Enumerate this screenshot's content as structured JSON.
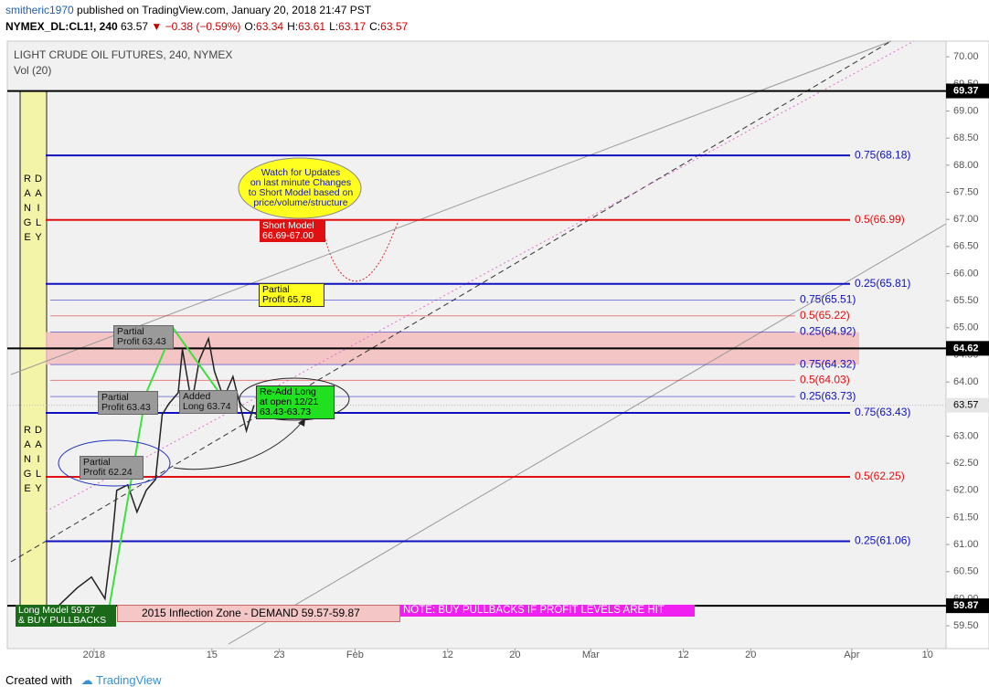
{
  "header": {
    "author": "smitheric1970",
    "published": "published on TradingView.com, January 20, 2018 21:47 PST",
    "symbol": "NYMEX_DL:CL1!, 240",
    "last": "63.57",
    "change": "▼ −0.38 (−0.59%)",
    "ohlc": [
      {
        "key": "O:",
        "value": "63.34"
      },
      {
        "key": "H:",
        "value": "63.61"
      },
      {
        "key": "L:",
        "value": "63.17"
      },
      {
        "key": "C:",
        "value": "63.57"
      }
    ]
  },
  "footer": {
    "created": "Created with",
    "brand": "TradingView"
  },
  "annotations": [
    "Watch for Updates\non last minute Changes\nto Short Model based on\nprice/volume/structure",
    "Short Model\n66.69-67.00",
    "Partial\nProfit 65.78",
    "Partial\nProfit 63.43",
    "Partial\nProfit 63.43",
    "Added\nLong 63.74",
    "Re-Add Long\nat open 12/21\n63.43-63.73",
    "Partial\nProfit 62.24",
    "Long Model 59.87\n& BUY PULLBACKS",
    "2015 Inflection Zone - DEMAND 59.57-59.87",
    "NOTE: BUY PULLBACKS IF PROFIT LEVELS ARE HIT",
    "DAILY RANGE",
    "DAILY RANGE"
  ],
  "chart_data": {
    "type": "line",
    "title": "LIGHT CRUDE OIL FUTURES, 240, NYMEX",
    "subtitle": "Vol (20)",
    "x": [
      -4.7,
      -2,
      -0.3,
      1.3,
      2.1,
      2.7,
      4,
      5.1,
      6.2,
      7.3,
      8.1,
      8.9,
      10,
      10.5,
      11.6,
      12.5,
      13.6,
      14.3,
      15.4,
      16.5,
      17.3,
      18.1,
      19
    ],
    "values": [
      59.8,
      60.2,
      60.4,
      60.0,
      61.0,
      62.0,
      62.1,
      61.6,
      62.0,
      62.2,
      63.4,
      63.6,
      63.8,
      64.6,
      63.6,
      64.4,
      64.8,
      64.2,
      63.7,
      64.1,
      63.6,
      63.1,
      63.57
    ],
    "color": "#222222",
    "xlim": [
      -10.3,
      101.2
    ],
    "xticks": [
      {
        "value": 0,
        "label": "2018"
      },
      {
        "value": 14,
        "label": "15"
      },
      {
        "value": 22,
        "label": "23"
      },
      {
        "value": 31,
        "label": "Feb"
      },
      {
        "value": 42,
        "label": "12"
      },
      {
        "value": 50,
        "label": "20"
      },
      {
        "value": 59,
        "label": "Mar"
      },
      {
        "value": 70,
        "label": "12"
      },
      {
        "value": 78,
        "label": "20"
      },
      {
        "value": 90,
        "label": "Apr"
      },
      {
        "value": 99,
        "label": "10"
      }
    ],
    "ylim": [
      59.08,
      70.29
    ],
    "yticks": [
      {
        "value": 59.5,
        "label": "59.50"
      },
      {
        "value": 60,
        "label": "60.00"
      },
      {
        "value": 60.5,
        "label": "60.50"
      },
      {
        "value": 61,
        "label": "61.00"
      },
      {
        "value": 61.5,
        "label": "61.50"
      },
      {
        "value": 62,
        "label": "62.00"
      },
      {
        "value": 62.5,
        "label": "62.50"
      },
      {
        "value": 63,
        "label": "63.00"
      },
      {
        "value": 63.5,
        "label": "63.50"
      },
      {
        "value": 64,
        "label": "64.00"
      },
      {
        "value": 64.5,
        "label": "64.50"
      },
      {
        "value": 65,
        "label": "65.00"
      },
      {
        "value": 65.5,
        "label": "65.50"
      },
      {
        "value": 66,
        "label": "66.00"
      },
      {
        "value": 66.5,
        "label": "66.50"
      },
      {
        "value": 67,
        "label": "67.00"
      },
      {
        "value": 67.5,
        "label": "67.50"
      },
      {
        "value": 68,
        "label": "68.00"
      },
      {
        "value": 68.5,
        "label": "68.50"
      },
      {
        "value": 69,
        "label": "69.00"
      },
      {
        "value": 69.5,
        "label": "69.50"
      },
      {
        "value": 70,
        "label": "70.00"
      }
    ],
    "major_levels": [
      {
        "label": "0.75(68.18)",
        "value": 68.18,
        "color": "#1010c0"
      },
      {
        "label": "0.5(66.99)",
        "value": 66.99,
        "color": "#e01010"
      },
      {
        "label": "0.25(65.81)",
        "value": 65.81,
        "color": "#1010c0"
      },
      {
        "label": "0.75(63.43)",
        "value": 63.43,
        "color": "#1010c0"
      },
      {
        "label": "0.5(62.25)",
        "value": 62.25,
        "color": "#e01010"
      },
      {
        "label": "0.25(61.06)",
        "value": 61.06,
        "color": "#1010c0"
      }
    ],
    "minor_levels": [
      {
        "label": "0.75(65.51)",
        "value": 65.51,
        "color": "#1010c0"
      },
      {
        "label": "0.5(65.22)",
        "value": 65.22,
        "color": "#e01010"
      },
      {
        "label": "0.25(64.92)",
        "value": 64.92,
        "color": "#1010c0"
      },
      {
        "label": "0.75(64.32)",
        "value": 64.32,
        "color": "#1010c0"
      },
      {
        "label": "0.5(64.03)",
        "value": 64.03,
        "color": "#e01010"
      },
      {
        "label": "0.25(63.73)",
        "value": 63.73,
        "color": "#1010c0"
      }
    ],
    "horizontal_lines": [
      69.37,
      64.62,
      59.87
    ],
    "last_price": 63.57
  }
}
